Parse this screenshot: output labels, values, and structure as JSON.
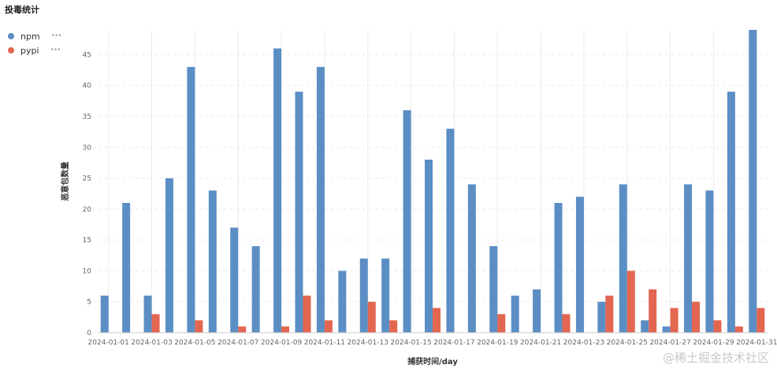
{
  "title": "投毒统计",
  "watermark": "@稀土掘金技术社区",
  "colors": {
    "npm": "#5b8ec4",
    "pypi": "#e36650",
    "grid": "#ebebeb",
    "axis": "#666666"
  },
  "chart_data": {
    "type": "bar",
    "title": "",
    "xlabel": "捕获时间/day",
    "ylabel": "恶意包数量",
    "ylim": [
      0,
      49
    ],
    "yticks": [
      0,
      5,
      10,
      15,
      20,
      25,
      30,
      35,
      40,
      45
    ],
    "grid": true,
    "legend_position": "top-left",
    "categories": [
      "2024-01-01",
      "2024-01-02",
      "2024-01-03",
      "2024-01-04",
      "2024-01-05",
      "2024-01-06",
      "2024-01-07",
      "2024-01-08",
      "2024-01-09",
      "2024-01-10",
      "2024-01-11",
      "2024-01-12",
      "2024-01-13",
      "2024-01-14",
      "2024-01-15",
      "2024-01-16",
      "2024-01-17",
      "2024-01-18",
      "2024-01-19",
      "2024-01-20",
      "2024-01-21",
      "2024-01-22",
      "2024-01-23",
      "2024-01-24",
      "2024-01-25",
      "2024-01-26",
      "2024-01-27",
      "2024-01-28",
      "2024-01-29",
      "2024-01-30",
      "2024-01-31"
    ],
    "xtick_labels": [
      "2024-01-01",
      "2024-01-03",
      "2024-01-05",
      "2024-01-07",
      "2024-01-09",
      "2024-01-11",
      "2024-01-13",
      "2024-01-15",
      "2024-01-17",
      "2024-01-19",
      "2024-01-21",
      "2024-01-23",
      "2024-01-25",
      "2024-01-27",
      "2024-01-29",
      "2024-01-31"
    ],
    "series": [
      {
        "name": "npm",
        "values": [
          6,
          21,
          6,
          25,
          43,
          23,
          17,
          14,
          46,
          39,
          43,
          10,
          12,
          12,
          36,
          28,
          33,
          24,
          14,
          6,
          7,
          21,
          22,
          5,
          24,
          2,
          1,
          24,
          23,
          39,
          49
        ]
      },
      {
        "name": "pypi",
        "values": [
          0,
          0,
          3,
          0,
          2,
          0,
          1,
          0,
          1,
          6,
          2,
          0,
          5,
          2,
          0,
          4,
          0,
          0,
          3,
          0,
          0,
          3,
          0,
          6,
          10,
          7,
          4,
          5,
          2,
          1,
          4
        ]
      }
    ]
  }
}
